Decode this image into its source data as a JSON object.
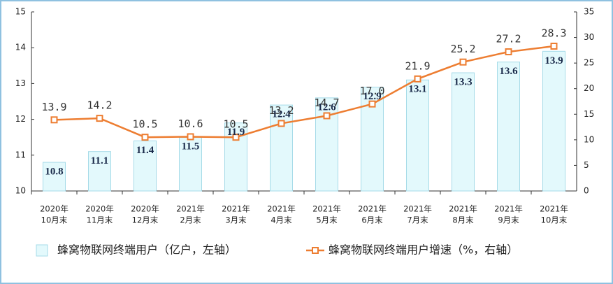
{
  "chart_data": {
    "type": "bar",
    "categories": [
      [
        "2020年",
        "10月末"
      ],
      [
        "2020年",
        "11月末"
      ],
      [
        "2020年",
        "12月末"
      ],
      [
        "2021年",
        "2月末"
      ],
      [
        "2021年",
        "3月末"
      ],
      [
        "2021年",
        "4月末"
      ],
      [
        "2021年",
        "5月末"
      ],
      [
        "2021年",
        "6月末"
      ],
      [
        "2021年",
        "7月末"
      ],
      [
        "2021年",
        "8月末"
      ],
      [
        "2021年",
        "9月末"
      ],
      [
        "2021年",
        "10月末"
      ]
    ],
    "series": [
      {
        "name": "蜂窝物联网终端用户（亿户，左轴）",
        "type": "bar",
        "color": "#e3f9fc",
        "values": [
          10.8,
          11.1,
          11.4,
          11.5,
          11.9,
          12.4,
          12.6,
          12.9,
          13.1,
          13.3,
          13.6,
          13.9
        ]
      },
      {
        "name": "蜂窝物联网终端用户增速（%，右轴）",
        "type": "line",
        "axis": "y2",
        "color": "#ed7d31",
        "values": [
          13.9,
          14.2,
          10.5,
          10.6,
          10.5,
          13.2,
          14.7,
          17.0,
          21.9,
          25.2,
          27.2,
          28.3
        ],
        "value_labels": [
          "13.9",
          "14.2",
          "10.5",
          "10.6",
          "10.5",
          "13.2",
          "14.7",
          "17.0",
          "21.9",
          "25.2",
          "27.2",
          "28.3"
        ]
      }
    ],
    "ylim": [
      10,
      15
    ],
    "yticks": [
      10,
      11,
      12,
      13,
      14,
      15
    ],
    "y2lim": [
      0,
      35
    ],
    "y2ticks": [
      0,
      5,
      10,
      15,
      20,
      25,
      30,
      35
    ]
  }
}
